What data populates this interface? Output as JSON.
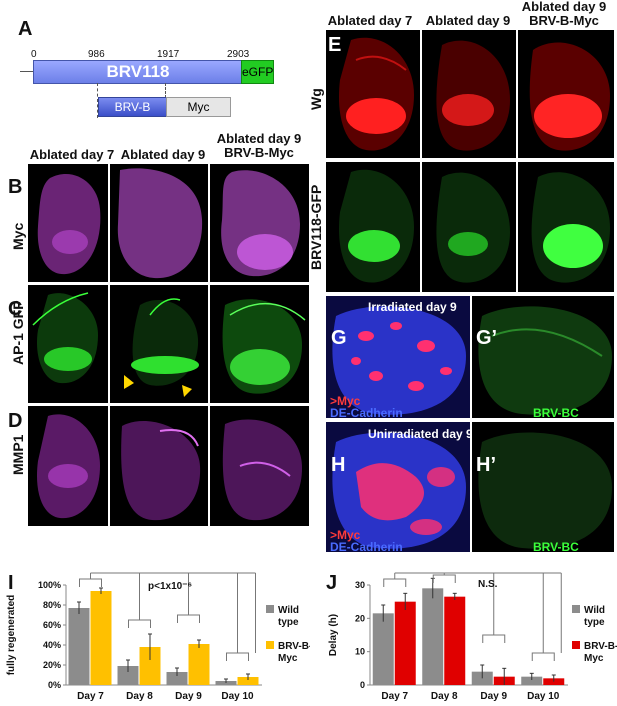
{
  "panelA": {
    "letter": "A",
    "pos_0": "0",
    "pos_986": "986",
    "pos_1917": "1917",
    "pos_2903": "2903",
    "brv118_label": "BRV118",
    "egfp_label": "eGFP",
    "brvb_label": "BRV-B",
    "myc_label": "Myc",
    "brv118_color": "#7b8cf0",
    "egfp_color": "#22cc22"
  },
  "leftColumns": {
    "col1": "Ablated day 7",
    "col2": "Ablated day 9",
    "col3_line1": "Ablated day 9",
    "col3_line2": "BRV-B-Myc"
  },
  "rightColumns": {
    "col1": "Ablated day 7",
    "col2": "Ablated day 9",
    "col3_line1": "Ablated day 9",
    "col3_line2": "BRV-B-Myc"
  },
  "rows": {
    "B": {
      "letter": "B",
      "label": "Myc"
    },
    "C": {
      "letter": "C",
      "label": "AP-1 GFP"
    },
    "D": {
      "letter": "D",
      "label": "MMP1"
    },
    "E": {
      "letter": "E",
      "label": "Wg"
    },
    "F": {
      "letter": "F",
      "label": "BRV118-GFP"
    }
  },
  "panelG": {
    "letter": "G",
    "letter_prime": "G’",
    "title": "Irradiated day 9",
    "myc_label": ">Myc",
    "cad_label": "DE-Cadherin",
    "brvbc_label": "BRV-BC"
  },
  "panelH": {
    "letter": "H",
    "letter_prime": "H’",
    "title": "Unirradiated day 9",
    "myc_label": ">Myc",
    "cad_label": "DE-Cadherin",
    "brvbc_label": "BRV-BC"
  },
  "chartI": {
    "letter": "I",
    "pvalue": "p<1x10⁻⁶",
    "tick_labels": [
      "0%",
      "20%",
      "40%",
      "60%",
      "80%",
      "100%"
    ],
    "legend_wt_line1": "Wild",
    "legend_wt_line2": "type",
    "legend_brv_line1": "BRV-B-",
    "legend_brv_line2": "Myc"
  },
  "chartJ": {
    "letter": "J",
    "ns": "N.S.",
    "tick_labels": [
      "0",
      "10",
      "20",
      "30"
    ],
    "legend_wt_line1": "Wild",
    "legend_wt_line2": "type",
    "legend_brv_line1": "BRV-B-",
    "legend_brv_line2": "Myc"
  },
  "chart_data": [
    {
      "type": "bar",
      "title": "",
      "xlabel": "",
      "ylabel": "fully regenerated",
      "categories": [
        "Day 7",
        "Day 8",
        "Day 9",
        "Day 10"
      ],
      "ylim": [
        0,
        1.0
      ],
      "series": [
        {
          "name": "Wild type",
          "color": "#8c8c8c",
          "values": [
            0.77,
            0.19,
            0.13,
            0.04
          ],
          "errors": [
            0.06,
            0.06,
            0.04,
            0.02
          ]
        },
        {
          "name": "BRV-B-Myc",
          "color": "#ffc000",
          "values": [
            0.94,
            0.38,
            0.41,
            0.08
          ],
          "errors": [
            0.03,
            0.13,
            0.04,
            0.03
          ]
        }
      ],
      "grid": false,
      "legend": "right"
    },
    {
      "type": "bar",
      "title": "",
      "xlabel": "",
      "ylabel": "Delay (h)",
      "categories": [
        "Day 7",
        "Day 8",
        "Day 9",
        "Day 10"
      ],
      "ylim": [
        0,
        30
      ],
      "series": [
        {
          "name": "Wild type",
          "color": "#8c8c8c",
          "values": [
            21.5,
            29,
            4,
            2.5
          ],
          "errors": [
            2.5,
            3,
            2,
            1
          ]
        },
        {
          "name": "BRV-B-Myc",
          "color": "#e00000",
          "values": [
            25,
            26.5,
            2.5,
            2
          ],
          "errors": [
            2.5,
            1,
            2.5,
            1
          ]
        }
      ],
      "grid": false,
      "legend": "right"
    }
  ]
}
